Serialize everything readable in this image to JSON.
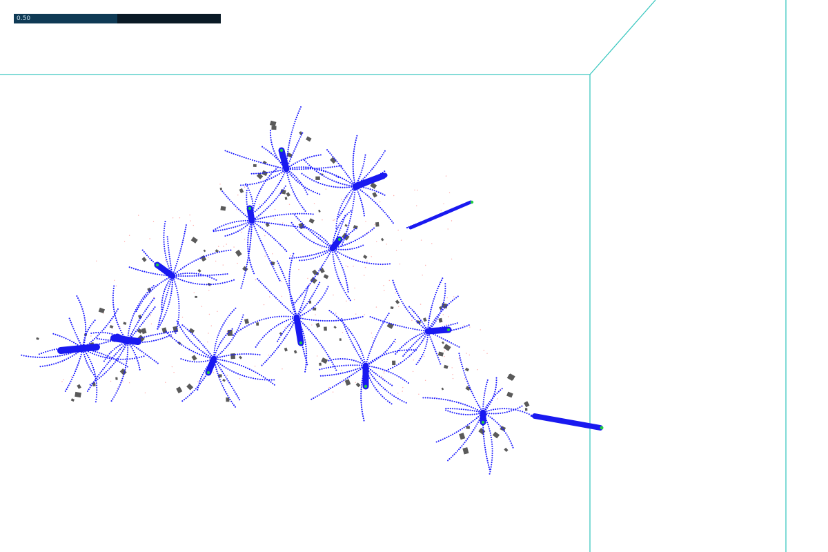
{
  "progress": {
    "value": 0.5,
    "label": "0.50"
  },
  "colors": {
    "room_edge": "#3cc8c0",
    "particle": "#1a1aff",
    "agent": "#1919f0",
    "agent_tip": "#22cc44",
    "obstacle": "#5a5a5a",
    "trace": "#ff6a6a",
    "bar_track": "#0a1a26",
    "bar_fill": "#0f3a55"
  }
}
